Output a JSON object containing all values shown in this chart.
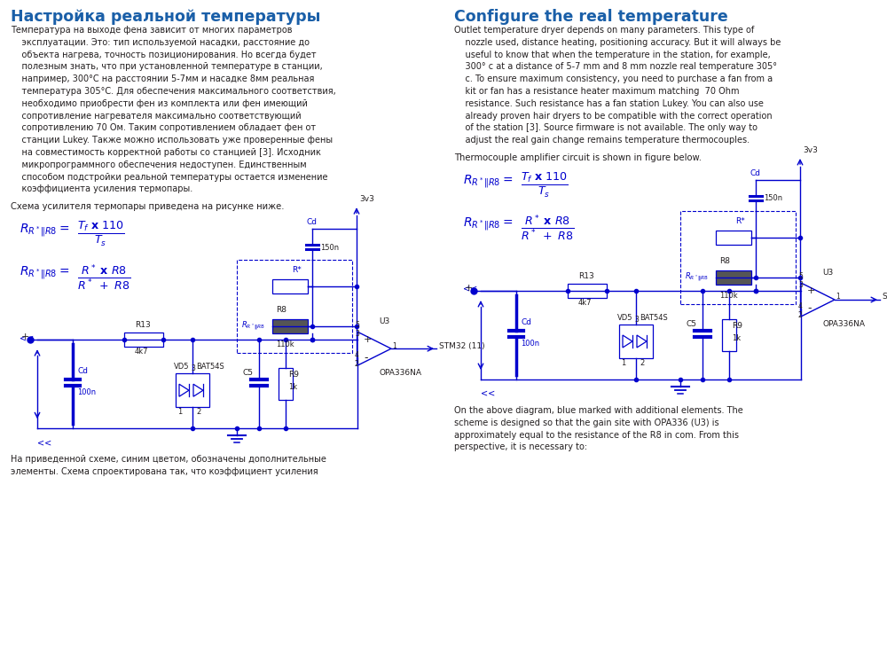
{
  "bg_color": "#ffffff",
  "left_title": "Настройка реальной температуры",
  "right_title": "Configure the real temperature",
  "title_color": "#1a5fa8",
  "text_color": "#231f20",
  "formula_color": "#0000cd",
  "circuit_color": "#0000cd",
  "left_body_lines": [
    "Температура на выходе фена зависит от многих параметров",
    "    эксплуатации. Это: тип используемой насадки, расстояние до",
    "    объекта нагрева, точность позиционирования. Но всегда будет",
    "    полезным знать, что при установленной температуре в станции,",
    "    например, 300°C на расстоянии 5-7мм и насадке 8мм реальная",
    "    температура 305°C. Для обеспечения максимального соответствия,",
    "    необходимо приобрести фен из комплекта или фен имеющий",
    "    сопротивление нагревателя максимально соответствующий",
    "    сопротивлению 70 Ом. Таким сопротивлением обладает фен от",
    "    станции Lukey. Также можно использовать уже проверенные фены",
    "    на совместимость корректной работы со станцией [3]. Исходник",
    "    микропрограммного обеспечения недоступен. Единственным",
    "    способом подстройки реальной температуры остается изменение",
    "    коэффициента усиления термопары."
  ],
  "left_circuit_intro": "Схема усилителя термопары приведена на рисунке ниже.",
  "left_bottom_lines": [
    "На приведенной схеме, синим цветом, обозначены дополнительные",
    "    элементы. Схема спроектирована так, что коэффициент усиления"
  ],
  "right_body_lines": [
    "Outlet temperature dryer depends on many parameters. This type of",
    "    nozzle used, distance heating, positioning accuracy. But it will always be",
    "    useful to know that when the temperature in the station, for example,",
    "    300° c at a distance of 5-7 mm and 8 mm nozzle real temperature 305°",
    "    c. To ensure maximum consistency, you need to purchase a fan from a",
    "    kit or fan has a resistance heater maximum matching  70 Ohm",
    "    resistance. Such resistance has a fan station Lukey. You can also use",
    "    already proven hair dryers to be compatible with the correct operation",
    "    of the station [3]. Source firmware is not available. The only way to",
    "    adjust the real gain change remains temperature thermocouples."
  ],
  "right_circuit_intro": "Thermocouple amplifier circuit is shown in figure below.",
  "right_bottom_lines": [
    "On the above diagram, blue marked with additional elements. The",
    "    scheme is designed so that the gain site with OPA336 (U3) is",
    "    approximately equal to the resistance of the R8 in com. From this",
    "    perspective, it is necessary to:"
  ]
}
